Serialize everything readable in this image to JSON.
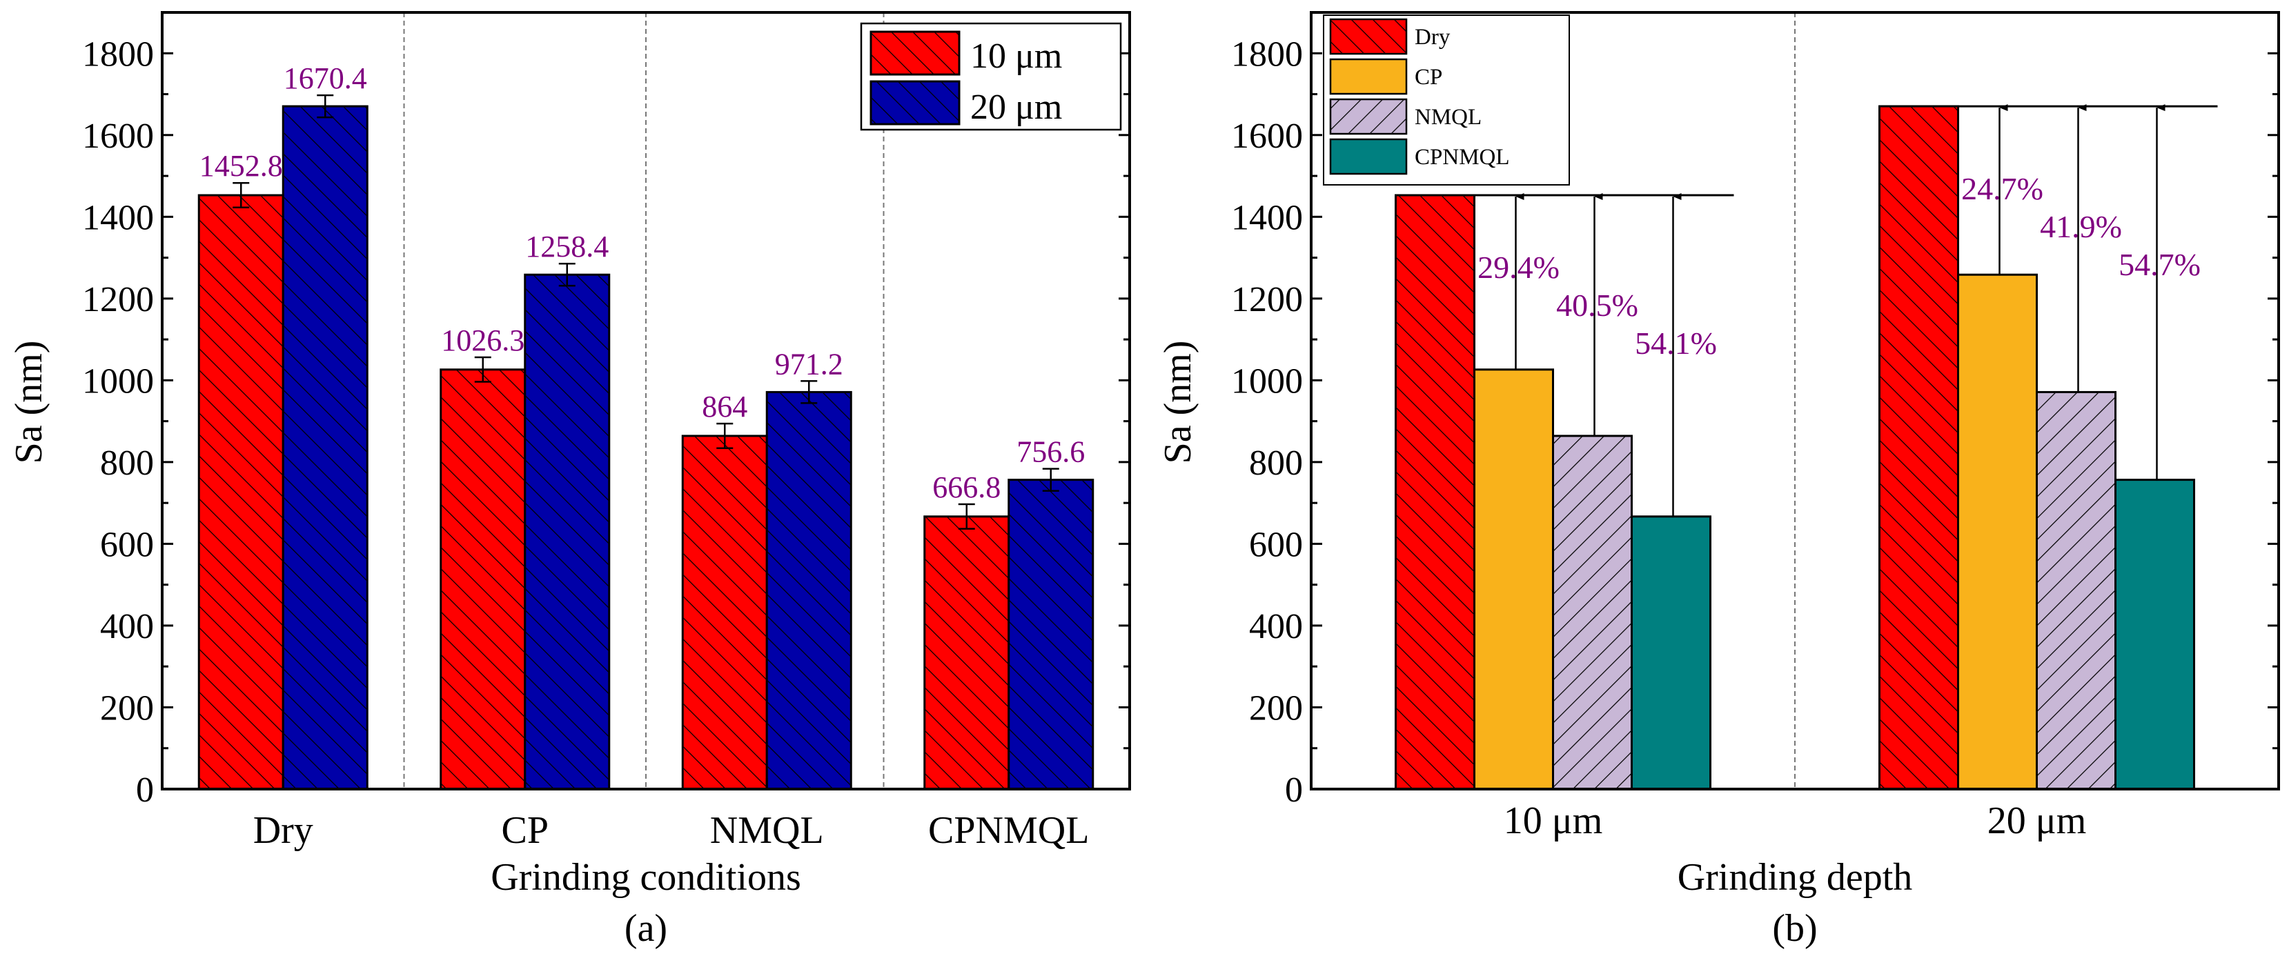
{
  "colors": {
    "dry": "#ff0000",
    "cp": "#f9b21b",
    "nmql": "#c8b7d6",
    "cpnmql": "#008080",
    "depth10": "#ff0000",
    "depth20": "#0000a8",
    "label": "#800080"
  },
  "chart_data": [
    {
      "type": "bar",
      "panel_label": "(a)",
      "xlabel": "Grinding conditions",
      "ylabel": "Sa (nm)",
      "ylim": [
        0,
        1900
      ],
      "yticks": [
        "0",
        "200",
        "400",
        "600",
        "800",
        "1000",
        "1200",
        "1400",
        "1600",
        "1800"
      ],
      "categories": [
        "Dry",
        "CP",
        "NMQL",
        "CPNMQL"
      ],
      "series": [
        {
          "name": "10 μm",
          "values": [
            1452.8,
            1026.3,
            864,
            666.8
          ],
          "labels": [
            "1452.8",
            "1026.3",
            "864",
            "666.8"
          ],
          "errors": [
            30,
            30,
            30,
            30
          ]
        },
        {
          "name": "20 μm",
          "values": [
            1670.4,
            1258.4,
            971.2,
            756.6
          ],
          "labels": [
            "1670.4",
            "1258.4",
            "971.2",
            "756.6"
          ],
          "errors": [
            27,
            27,
            27,
            27
          ]
        }
      ],
      "legend_position": "top-right"
    },
    {
      "type": "bar",
      "panel_label": "(b)",
      "xlabel": "Grinding depth",
      "ylabel": "Sa (nm)",
      "ylim": [
        0,
        1900
      ],
      "yticks": [
        "0",
        "200",
        "400",
        "600",
        "800",
        "1000",
        "1200",
        "1400",
        "1600",
        "1800"
      ],
      "categories": [
        "10 μm",
        "20 μm"
      ],
      "series": [
        {
          "name": "Dry",
          "values": [
            1452.8,
            1670.4
          ]
        },
        {
          "name": "CP",
          "values": [
            1026.3,
            1258.4
          ]
        },
        {
          "name": "NMQL",
          "values": [
            864,
            971.2
          ]
        },
        {
          "name": "CPNMQL",
          "values": [
            666.8,
            756.6
          ]
        }
      ],
      "reductions": [
        [
          "29.4%",
          "40.5%",
          "54.1%"
        ],
        [
          "24.7%",
          "41.9%",
          "54.7%"
        ]
      ],
      "legend_position": "top-left"
    }
  ]
}
